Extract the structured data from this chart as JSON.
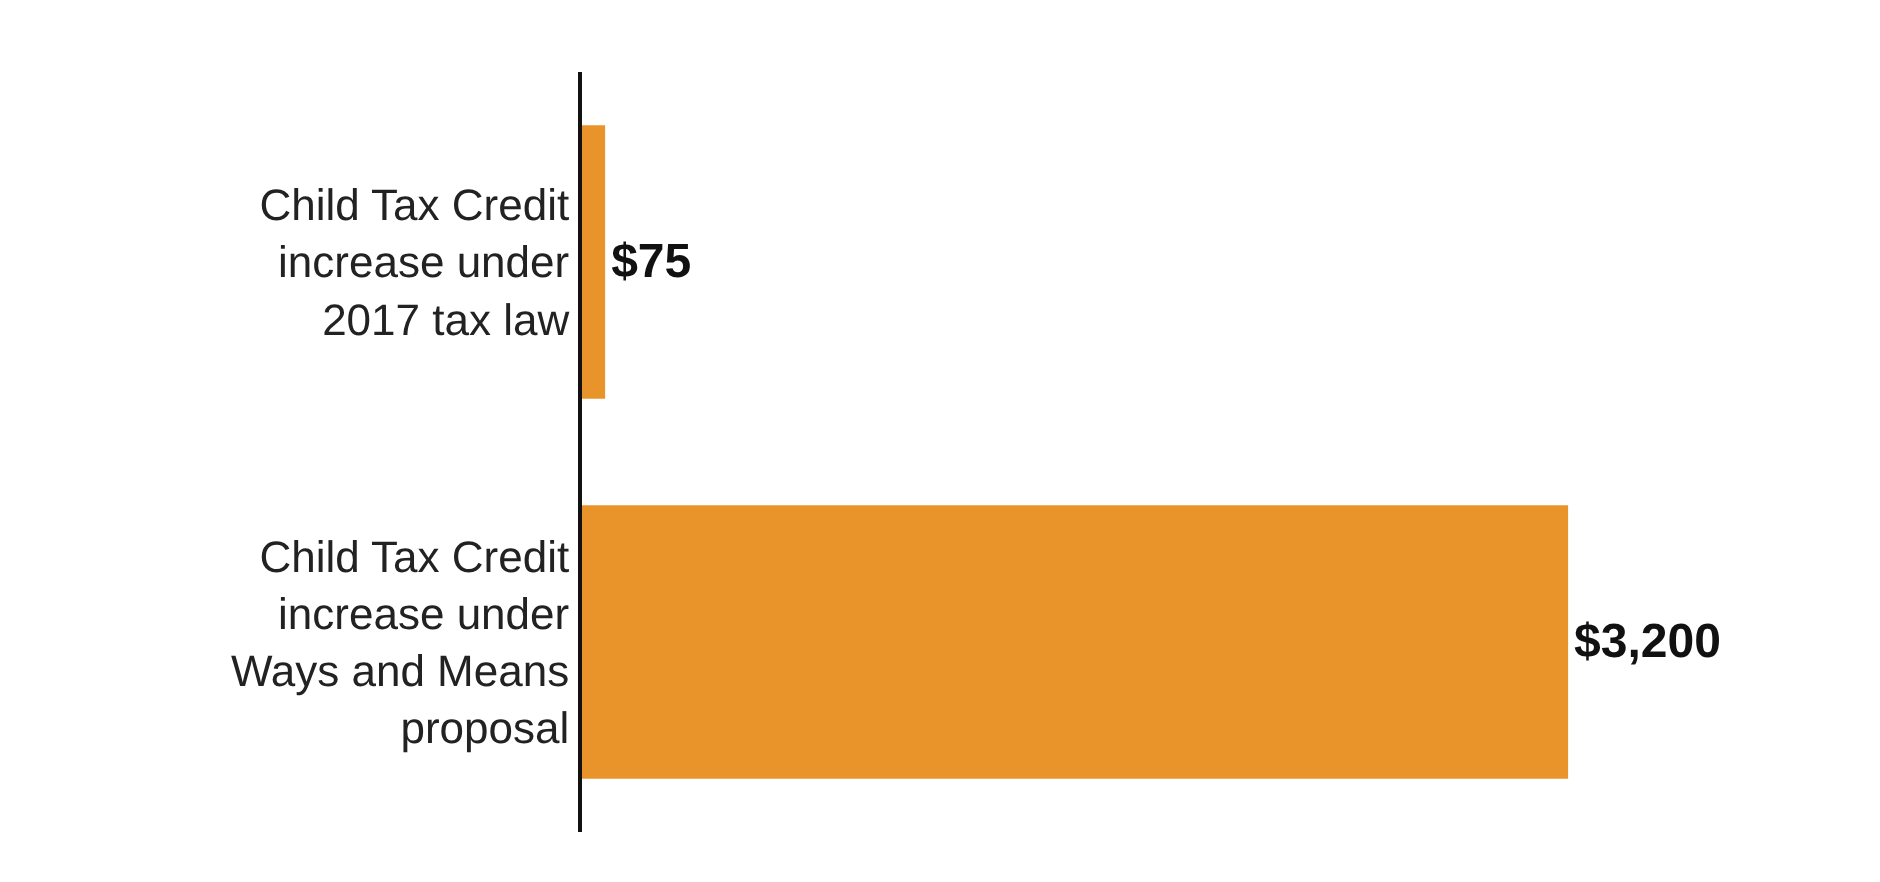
{
  "chart_data": {
    "type": "bar",
    "orientation": "horizontal",
    "categories": [
      "Child Tax Credit increase under 2017 tax law",
      "Child Tax Credit increase under Ways and Means proposal"
    ],
    "values": [
      75,
      3200
    ],
    "color": "#e8942b",
    "value_labels": [
      "$75",
      "$3,200"
    ]
  }
}
